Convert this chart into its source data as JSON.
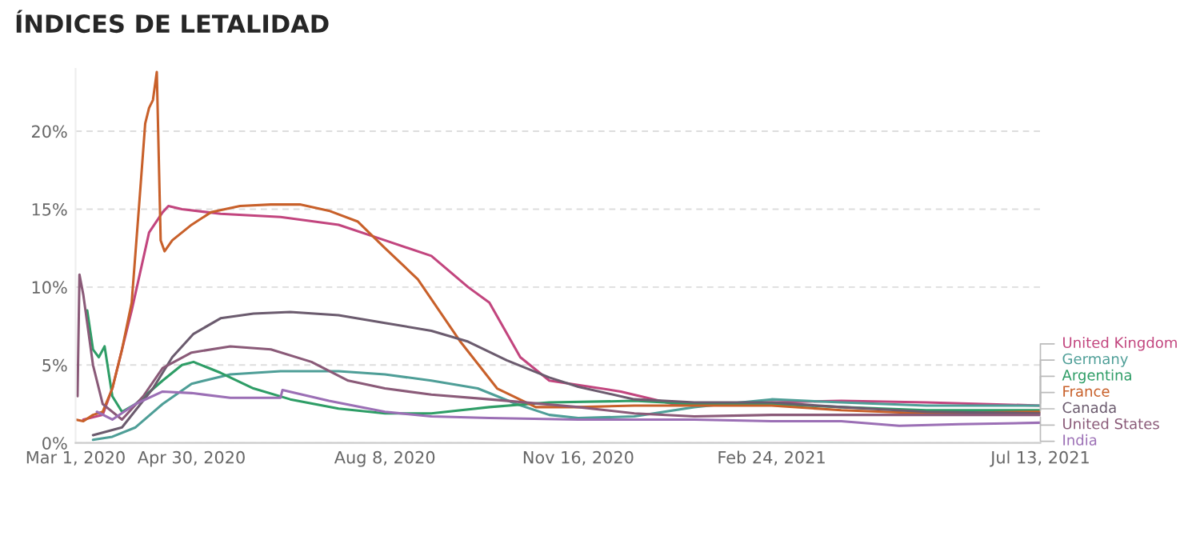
{
  "chart_data": {
    "type": "line",
    "title": "ÍNDICES DE LETALIDAD",
    "xlim": [
      "2020-03-01",
      "2021-07-13"
    ],
    "ylim": [
      0,
      24
    ],
    "xticks": [
      {
        "value": "2020-03-01",
        "label": "Mar 1, 2020"
      },
      {
        "value": "2020-04-30",
        "label": "Apr 30, 2020"
      },
      {
        "value": "2020-08-08",
        "label": "Aug 8, 2020"
      },
      {
        "value": "2020-11-16",
        "label": "Nov 16, 2020"
      },
      {
        "value": "2021-02-24",
        "label": "Feb 24, 2021"
      },
      {
        "value": "2021-07-13",
        "label": "Jul 13, 2021"
      }
    ],
    "yticks": [
      {
        "value": 0,
        "label": "0%"
      },
      {
        "value": 5,
        "label": "5%"
      },
      {
        "value": 10,
        "label": "10%"
      },
      {
        "value": 15,
        "label": "15%"
      },
      {
        "value": 20,
        "label": "20%"
      }
    ],
    "grid": "y",
    "line_style": "solid",
    "marker": "none",
    "series": [
      {
        "name": "United Kingdom",
        "color": "#c2457e",
        "x": [
          "2020-03-05",
          "2020-03-15",
          "2020-03-20",
          "2020-03-30",
          "2020-04-08",
          "2020-04-15",
          "2020-04-18",
          "2020-04-25",
          "2020-05-15",
          "2020-06-15",
          "2020-07-15",
          "2020-08-08",
          "2020-09-01",
          "2020-09-20",
          "2020-10-01",
          "2020-10-17",
          "2020-11-01",
          "2020-12-08",
          "2021-01-04",
          "2021-02-24",
          "2021-04-01",
          "2021-05-15",
          "2021-07-13"
        ],
        "values": [
          1.5,
          1.8,
          3.5,
          8.5,
          13.5,
          14.8,
          15.2,
          15.0,
          14.7,
          14.5,
          14.0,
          13.0,
          12.0,
          10.0,
          9.0,
          5.5,
          4.0,
          3.3,
          2.5,
          2.6,
          2.7,
          2.6,
          2.4
        ]
      },
      {
        "name": "Germany",
        "color": "#4e9e97",
        "x": [
          "2020-03-10",
          "2020-03-20",
          "2020-04-01",
          "2020-04-15",
          "2020-04-30",
          "2020-05-20",
          "2020-06-15",
          "2020-07-15",
          "2020-08-08",
          "2020-09-01",
          "2020-09-25",
          "2020-10-15",
          "2020-11-01",
          "2020-11-16",
          "2020-12-15",
          "2021-01-15",
          "2021-02-24",
          "2021-04-01",
          "2021-05-15",
          "2021-07-13"
        ],
        "values": [
          0.2,
          0.4,
          1.0,
          2.5,
          3.8,
          4.4,
          4.6,
          4.6,
          4.4,
          4.0,
          3.5,
          2.5,
          1.8,
          1.6,
          1.7,
          2.3,
          2.8,
          2.6,
          2.4,
          2.4
        ]
      },
      {
        "name": "Argentina",
        "color": "#2e9d66",
        "x": [
          "2020-03-07",
          "2020-03-10",
          "2020-03-13",
          "2020-03-16",
          "2020-03-20",
          "2020-03-25",
          "2020-04-01",
          "2020-04-15",
          "2020-04-25",
          "2020-05-01",
          "2020-05-15",
          "2020-06-01",
          "2020-06-20",
          "2020-07-15",
          "2020-08-08",
          "2020-09-01",
          "2020-10-01",
          "2020-11-01",
          "2020-12-15",
          "2021-01-15",
          "2021-02-24",
          "2021-04-01",
          "2021-05-15",
          "2021-07-13"
        ],
        "values": [
          8.5,
          6.0,
          5.5,
          6.2,
          3.0,
          2.0,
          2.5,
          4.0,
          5.0,
          5.2,
          4.5,
          3.5,
          2.8,
          2.2,
          1.9,
          1.9,
          2.3,
          2.6,
          2.7,
          2.5,
          2.5,
          2.3,
          2.1,
          2.1
        ]
      },
      {
        "name": "France",
        "color": "#c8602a",
        "x": [
          "2020-03-01",
          "2020-03-05",
          "2020-03-10",
          "2020-03-15",
          "2020-03-20",
          "2020-03-25",
          "2020-03-30",
          "2020-04-03",
          "2020-04-06",
          "2020-04-08",
          "2020-04-10",
          "2020-04-12",
          "2020-04-14",
          "2020-04-16",
          "2020-04-20",
          "2020-04-30",
          "2020-05-10",
          "2020-05-25",
          "2020-06-10",
          "2020-06-25",
          "2020-07-10",
          "2020-07-25",
          "2020-08-08",
          "2020-08-25",
          "2020-09-16",
          "2020-10-05",
          "2020-10-25",
          "2020-11-16",
          "2020-12-15",
          "2021-01-15",
          "2021-02-24",
          "2021-04-01",
          "2021-05-15",
          "2021-07-13"
        ],
        "values": [
          1.5,
          1.4,
          1.8,
          2.0,
          3.5,
          6.0,
          9.0,
          15.5,
          20.5,
          21.5,
          22.0,
          23.8,
          13.0,
          12.3,
          13.0,
          14.0,
          14.8,
          15.2,
          15.3,
          15.3,
          14.9,
          14.2,
          12.5,
          10.5,
          6.5,
          3.5,
          2.3,
          2.3,
          2.4,
          2.4,
          2.4,
          2.1,
          1.9,
          2.0
        ]
      },
      {
        "name": "Canada",
        "color": "#6b5b6e",
        "x": [
          "2020-03-10",
          "2020-03-25",
          "2020-04-10",
          "2020-04-20",
          "2020-05-01",
          "2020-05-15",
          "2020-06-01",
          "2020-06-20",
          "2020-07-15",
          "2020-08-08",
          "2020-09-01",
          "2020-09-20",
          "2020-10-10",
          "2020-11-01",
          "2020-11-16",
          "2020-12-15",
          "2021-01-15",
          "2021-02-24",
          "2021-04-01",
          "2021-05-15",
          "2021-07-13"
        ],
        "values": [
          0.5,
          1.0,
          3.5,
          5.5,
          7.0,
          8.0,
          8.3,
          8.4,
          8.2,
          7.7,
          7.2,
          6.5,
          5.3,
          4.2,
          3.6,
          2.8,
          2.6,
          2.6,
          2.3,
          2.0,
          1.9
        ]
      },
      {
        "name": "United States",
        "color": "#8a5a78",
        "x": [
          "2020-03-02",
          "2020-03-03",
          "2020-03-05",
          "2020-03-10",
          "2020-03-15",
          "2020-03-25",
          "2020-04-05",
          "2020-04-15",
          "2020-04-30",
          "2020-05-20",
          "2020-06-10",
          "2020-07-01",
          "2020-07-20",
          "2020-08-08",
          "2020-09-01",
          "2020-10-01",
          "2020-11-16",
          "2020-12-15",
          "2021-01-15",
          "2021-02-24",
          "2021-04-01",
          "2021-05-15",
          "2021-07-13"
        ],
        "values": [
          3.0,
          10.8,
          9.5,
          5.0,
          2.5,
          1.5,
          3.0,
          4.8,
          5.8,
          6.2,
          6.0,
          5.2,
          4.0,
          3.5,
          3.1,
          2.8,
          2.3,
          1.9,
          1.7,
          1.8,
          1.8,
          1.8,
          1.8
        ]
      },
      {
        "name": "India",
        "color": "#9b6fb5",
        "x": [
          "2020-03-12",
          "2020-03-20",
          "2020-04-01",
          "2020-04-15",
          "2020-04-30",
          "2020-05-20",
          "2020-06-15",
          "2020-06-16",
          "2020-07-10",
          "2020-08-08",
          "2020-09-01",
          "2020-10-01",
          "2020-11-16",
          "2020-12-15",
          "2021-01-15",
          "2021-02-24",
          "2021-04-01",
          "2021-05-01",
          "2021-06-01",
          "2021-07-13"
        ],
        "values": [
          2.0,
          1.5,
          2.5,
          3.3,
          3.2,
          2.9,
          2.9,
          3.4,
          2.7,
          2.0,
          1.7,
          1.6,
          1.5,
          1.5,
          1.5,
          1.4,
          1.4,
          1.1,
          1.2,
          1.3
        ]
      }
    ]
  }
}
